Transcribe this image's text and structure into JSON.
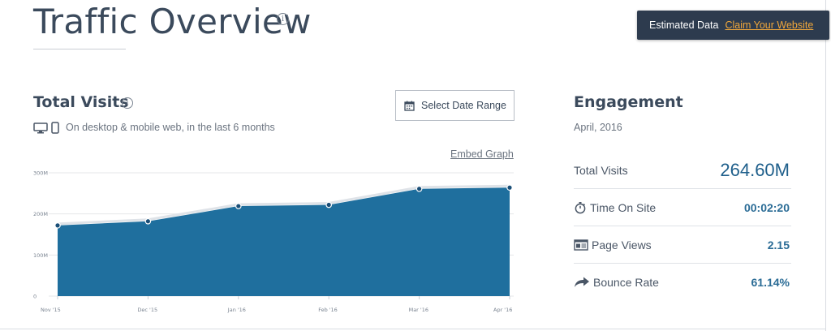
{
  "header": {
    "title": "Traffic Overview",
    "info_icon": "info-icon",
    "banner": {
      "text": "Estimated Data",
      "link": "Claim Your Website"
    }
  },
  "total_visits": {
    "title": "Total Visits",
    "device_note": "On desktop & mobile web, in the last 6 months",
    "date_range_button": "Select Date Range",
    "embed_link": "Embed Graph"
  },
  "chart_data": {
    "type": "area",
    "x": [
      "Nov '15",
      "Dec '15",
      "Jan '16",
      "Feb '16",
      "Mar '16",
      "Apr '16"
    ],
    "series": [
      {
        "values": [
          172,
          182,
          219,
          222,
          261,
          264
        ]
      }
    ],
    "y_ticks": [
      "0",
      "100M",
      "200M",
      "300M"
    ],
    "ylim": [
      0,
      300
    ],
    "grid": true,
    "color": "#1f6f9e"
  },
  "engagement": {
    "title": "Engagement",
    "date": "April, 2016",
    "metrics": [
      {
        "label": "Total Visits",
        "value": "264.60M",
        "icon": ""
      },
      {
        "label": "Time On Site",
        "value": "00:02:20",
        "icon": "stopwatch-icon"
      },
      {
        "label": "Page Views",
        "value": "2.15",
        "icon": "page-views-icon"
      },
      {
        "label": "Bounce Rate",
        "value": "61.14%",
        "icon": "bounce-arrow-icon"
      }
    ]
  }
}
